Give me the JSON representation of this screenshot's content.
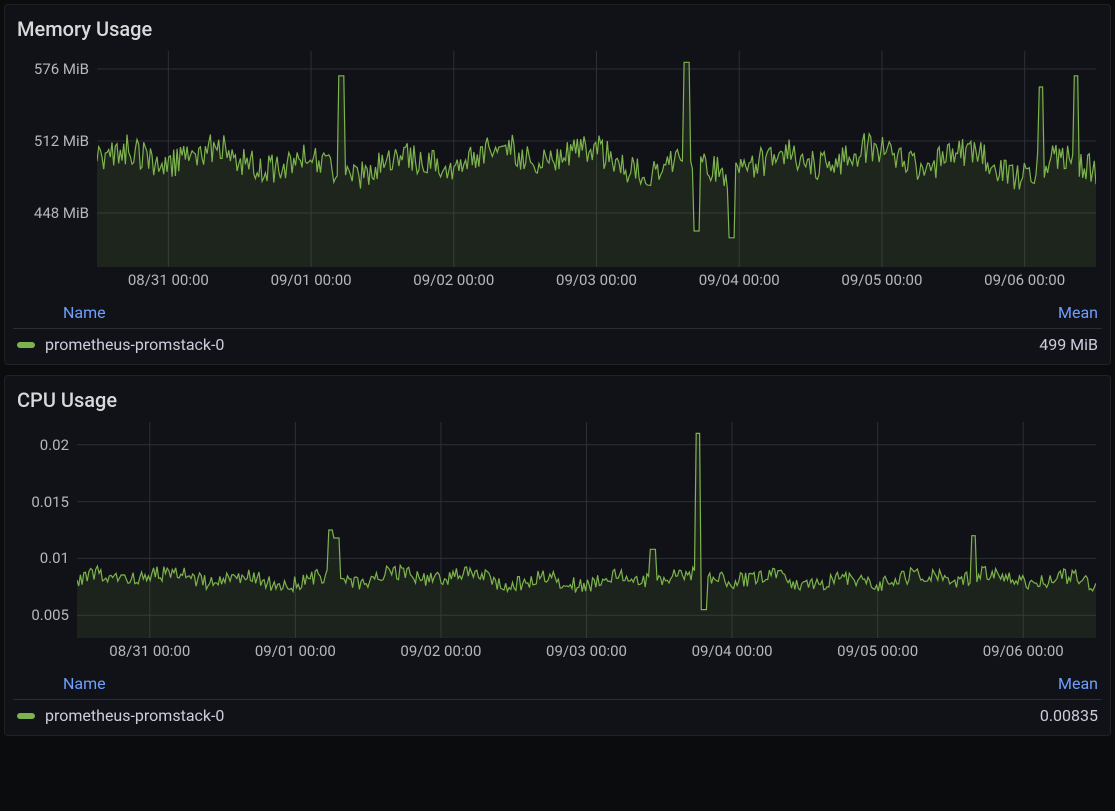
{
  "panels": {
    "memory": {
      "title": "Memory Usage",
      "type": "line",
      "series_color": "#7db34c",
      "fill_color": "rgba(125,179,76,0.12)",
      "grid_color": "#2c2f34",
      "background_color": "#111217",
      "line_width": 1.2,
      "y_axis": {
        "min": 400,
        "max": 592,
        "ticks": [
          {
            "v": 448,
            "label": "448 MiB"
          },
          {
            "v": 512,
            "label": "512 MiB"
          },
          {
            "v": 576,
            "label": "576 MiB"
          }
        ],
        "label_fontsize": 15,
        "unit": "MiB"
      },
      "x_axis": {
        "labels": [
          "08/31 00:00",
          "09/01 00:00",
          "09/02 00:00",
          "09/03 00:00",
          "09/04 00:00",
          "09/05 00:00",
          "09/06 00:00"
        ],
        "grid_count": 7,
        "label_fontsize": 15
      },
      "jitter": {
        "base": 494,
        "amp": 22,
        "noise": 14,
        "period": 9,
        "spikes": [
          {
            "x": 0.245,
            "v": 570
          },
          {
            "x": 0.59,
            "v": 582
          },
          {
            "x": 0.6,
            "v": 432
          },
          {
            "x": 0.635,
            "v": 426
          },
          {
            "x": 0.945,
            "v": 560
          },
          {
            "x": 0.98,
            "v": 570
          }
        ]
      },
      "legend": {
        "name_header": "Name",
        "mean_header": "Mean",
        "items": [
          {
            "swatch": "#7db34c",
            "name": "prometheus-promstack-0",
            "mean": "499 MiB"
          }
        ]
      }
    },
    "cpu": {
      "title": "CPU Usage",
      "type": "line",
      "series_color": "#7db34c",
      "fill_color": "rgba(125,179,76,0.10)",
      "grid_color": "#2c2f34",
      "background_color": "#111217",
      "line_width": 1.2,
      "y_axis": {
        "min": 0.003,
        "max": 0.022,
        "ticks": [
          {
            "v": 0.005,
            "label": "0.005"
          },
          {
            "v": 0.01,
            "label": "0.01"
          },
          {
            "v": 0.015,
            "label": "0.015"
          },
          {
            "v": 0.02,
            "label": "0.02"
          }
        ],
        "label_fontsize": 15,
        "unit": ""
      },
      "x_axis": {
        "labels": [
          "08/31 00:00",
          "09/01 00:00",
          "09/02 00:00",
          "09/03 00:00",
          "09/04 00:00",
          "09/05 00:00",
          "09/06 00:00"
        ],
        "grid_count": 7,
        "label_fontsize": 15
      },
      "jitter": {
        "base": 0.0082,
        "amp": 0.001,
        "noise": 0.0007,
        "period": 7,
        "spikes": [
          {
            "x": 0.25,
            "v": 0.0125
          },
          {
            "x": 0.255,
            "v": 0.0118
          },
          {
            "x": 0.565,
            "v": 0.0108
          },
          {
            "x": 0.61,
            "v": 0.021
          },
          {
            "x": 0.615,
            "v": 0.0055
          },
          {
            "x": 0.88,
            "v": 0.012
          }
        ]
      },
      "legend": {
        "name_header": "Name",
        "mean_header": "Mean",
        "items": [
          {
            "swatch": "#7db34c",
            "name": "prometheus-promstack-0",
            "mean": "0.00835"
          }
        ]
      }
    }
  }
}
